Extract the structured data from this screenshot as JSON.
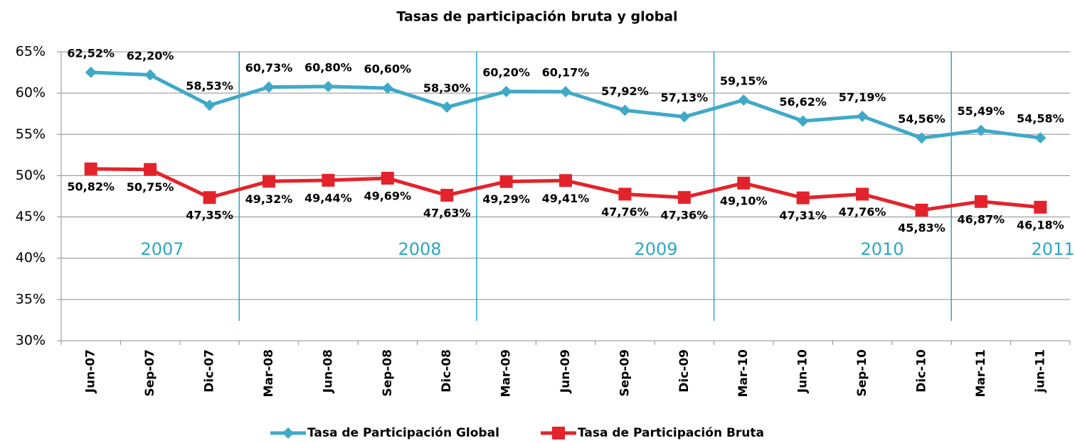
{
  "chart_data": {
    "type": "line",
    "title": "Tasas de participación bruta y global",
    "categories": [
      "Jun-07",
      "Sep-07",
      "Dic-07",
      "Mar-08",
      "Jun-08",
      "Sep-08",
      "Dic-08",
      "Mar-09",
      "Jun-09",
      "Sep-09",
      "Dic-09",
      "Mar-10",
      "Jun-10",
      "Sep-10",
      "Dic-10",
      "Mar-11",
      "jun-11"
    ],
    "series": [
      {
        "name": "Tasa de Participación Global",
        "color": "#3fa9c8",
        "marker": "diamond",
        "values": [
          62.52,
          62.2,
          58.53,
          60.73,
          60.8,
          60.6,
          58.3,
          60.2,
          60.17,
          57.92,
          57.13,
          59.15,
          56.62,
          57.19,
          54.56,
          55.49,
          54.58
        ],
        "value_labels": [
          "62,52%",
          "62,20%",
          "58,53%",
          "60,73%",
          "60,80%",
          "60,60%",
          "58,30%",
          "60,20%",
          "60,17%",
          "57,92%",
          "57,13%",
          "59,15%",
          "56,62%",
          "57,19%",
          "54,56%",
          "55,49%",
          "54,58%"
        ]
      },
      {
        "name": "Tasa de Participación Bruta",
        "color": "#e3232b",
        "marker": "square",
        "values": [
          50.82,
          50.75,
          47.35,
          49.32,
          49.44,
          49.69,
          47.63,
          49.29,
          49.41,
          47.76,
          47.36,
          49.1,
          47.31,
          47.76,
          45.83,
          46.87,
          46.18
        ],
        "value_labels": [
          "50,82%",
          "50,75%",
          "47,35%",
          "49,32%",
          "49,44%",
          "49,69%",
          "47,63%",
          "49,29%",
          "49,41%",
          "47,76%",
          "47,36%",
          "49,10%",
          "47,31%",
          "47,76%",
          "45,83%",
          "46,87%",
          "46,18%"
        ]
      }
    ],
    "ylim": [
      30,
      65
    ],
    "yticks": [
      {
        "value": 30,
        "label": "30%"
      },
      {
        "value": 35,
        "label": "35%"
      },
      {
        "value": 40,
        "label": "40%"
      },
      {
        "value": 45,
        "label": "45%"
      },
      {
        "value": 50,
        "label": "50%"
      },
      {
        "value": 55,
        "label": "55%"
      },
      {
        "value": 60,
        "label": "60%"
      },
      {
        "value": 65,
        "label": "65%"
      }
    ],
    "grid": true,
    "annotations": [
      "2007",
      "2008",
      "2009",
      "2010",
      "2011"
    ],
    "annotation_color": "#2aa8c4",
    "legend": "bottom"
  }
}
